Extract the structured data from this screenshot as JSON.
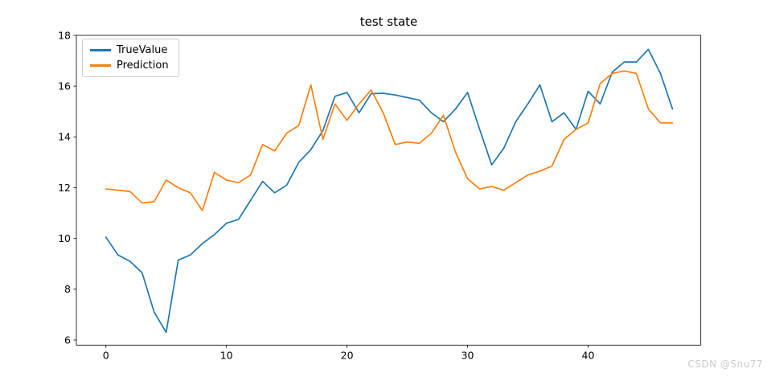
{
  "figure": {
    "title": "test state",
    "watermark": "CSDN @Snu77"
  },
  "chart_data": {
    "type": "line",
    "title": "test state",
    "xlabel": "",
    "ylabel": "",
    "grid": false,
    "legend_position": "upper left",
    "xlim": [
      -2.45,
      49.35
    ],
    "ylim": [
      5.8,
      18.0
    ],
    "xticks": [
      0,
      10,
      20,
      30,
      40
    ],
    "yticks": [
      6,
      8,
      10,
      12,
      14,
      16,
      18
    ],
    "x": [
      0,
      1,
      2,
      3,
      4,
      5,
      6,
      7,
      8,
      9,
      10,
      11,
      12,
      13,
      14,
      15,
      16,
      17,
      18,
      19,
      20,
      21,
      22,
      23,
      24,
      25,
      26,
      27,
      28,
      29,
      30,
      31,
      32,
      33,
      34,
      35,
      36,
      37,
      38,
      39,
      40,
      41,
      42,
      43,
      44,
      45,
      46,
      47
    ],
    "series": [
      {
        "name": "TrueValue",
        "color": "#1f77b4",
        "values": [
          10.05,
          9.35,
          9.1,
          8.65,
          7.1,
          6.3,
          9.15,
          9.35,
          9.8,
          10.15,
          10.6,
          10.75,
          11.5,
          12.25,
          11.8,
          12.1,
          13.0,
          13.5,
          14.25,
          15.6,
          15.75,
          14.95,
          15.7,
          15.72,
          15.65,
          15.55,
          15.45,
          14.95,
          14.6,
          15.1,
          15.75,
          14.3,
          12.9,
          13.55,
          14.6,
          15.3,
          16.05,
          14.6,
          14.95,
          14.3,
          15.8,
          15.3,
          16.55,
          16.95,
          16.95,
          17.45,
          16.5,
          15.1
        ]
      },
      {
        "name": "Prediction",
        "color": "#ff7f0e",
        "values": [
          11.95,
          11.9,
          11.85,
          11.4,
          11.45,
          12.3,
          12.0,
          11.8,
          11.1,
          12.6,
          12.3,
          12.2,
          12.5,
          13.7,
          13.45,
          14.15,
          14.45,
          16.05,
          13.9,
          15.3,
          14.65,
          15.3,
          15.85,
          14.95,
          13.7,
          13.8,
          13.75,
          14.15,
          14.85,
          13.4,
          12.35,
          11.95,
          12.05,
          11.9,
          12.2,
          12.5,
          12.65,
          12.85,
          13.9,
          14.3,
          14.55,
          16.1,
          16.5,
          16.6,
          16.5,
          15.1,
          14.55,
          14.55
        ]
      }
    ]
  }
}
